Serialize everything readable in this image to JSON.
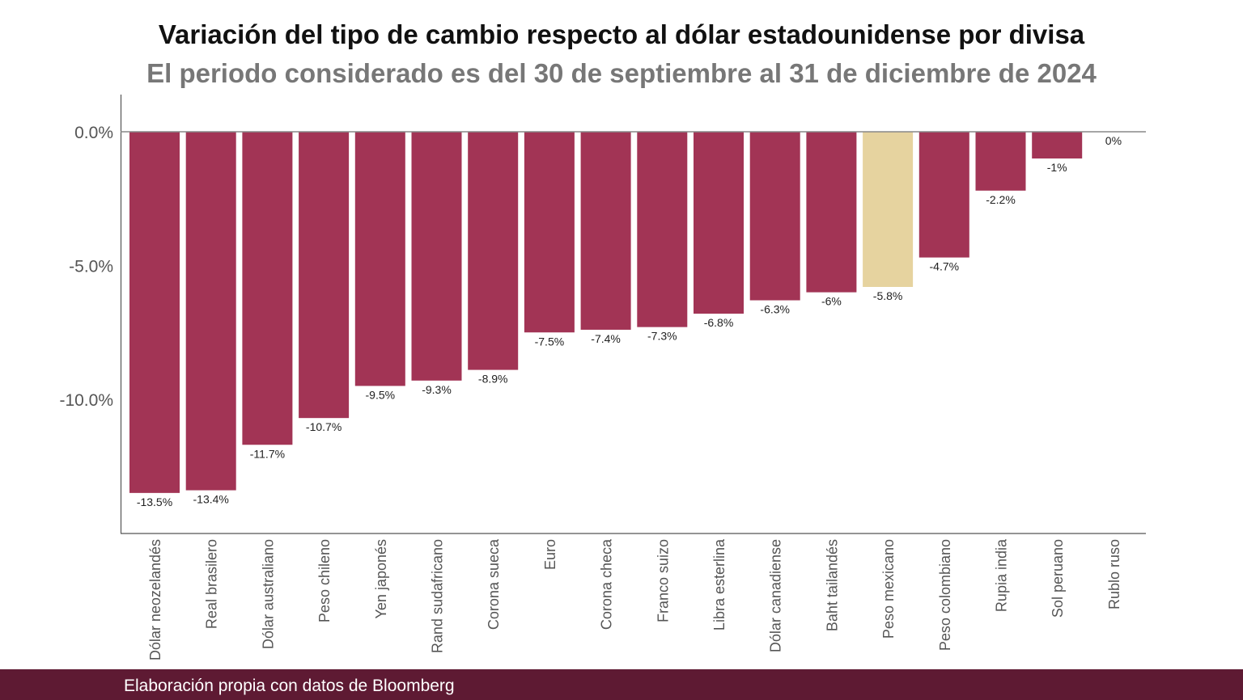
{
  "chart_data": {
    "type": "bar",
    "title": "Variación del tipo de cambio respecto al dólar estadounidense por divisa",
    "subtitle": "El periodo considerado es del 30 de septiembre al 31 de diciembre de 2024",
    "categories": [
      "Dólar neozelandés",
      "Real brasilero",
      "Dólar australiano",
      "Peso chileno",
      "Yen japonés",
      "Rand sudafricano",
      "Corona sueca",
      "Euro",
      "Corona checa",
      "Franco suizo",
      "Libra esterlina",
      "Dólar canadiense",
      "Baht tailandés",
      "Peso mexicano",
      "Peso colombiano",
      "Rupia india",
      "Sol peruano",
      "Rublo ruso"
    ],
    "values": [
      -13.5,
      -13.4,
      -11.7,
      -10.7,
      -9.5,
      -9.3,
      -8.9,
      -7.5,
      -7.4,
      -7.3,
      -6.8,
      -6.3,
      -6,
      -5.8,
      -4.7,
      -2.2,
      -1,
      0
    ],
    "data_labels": [
      "-13.5%",
      "-13.4%",
      "-11.7%",
      "-10.7%",
      "-9.5%",
      "-9.3%",
      "-8.9%",
      "-7.5%",
      "-7.4%",
      "-7.3%",
      "-6.8%",
      "-6.3%",
      "-6%",
      "-5.8%",
      "-4.7%",
      "-2.2%",
      "-1%",
      "0%"
    ],
    "yticks": [
      0,
      -5,
      -10
    ],
    "ytick_labels": [
      "0.0%",
      "-5.0%",
      "-10.0%"
    ],
    "ylim": [
      -15,
      1.4
    ],
    "grid": false,
    "colors": {
      "default": "#a23455",
      "highlight": "#e6d39f",
      "highlight_category": "Peso mexicano"
    }
  },
  "footer": {
    "source": "Elaboración propia con datos de Bloomberg",
    "color": "#5e1a33"
  }
}
